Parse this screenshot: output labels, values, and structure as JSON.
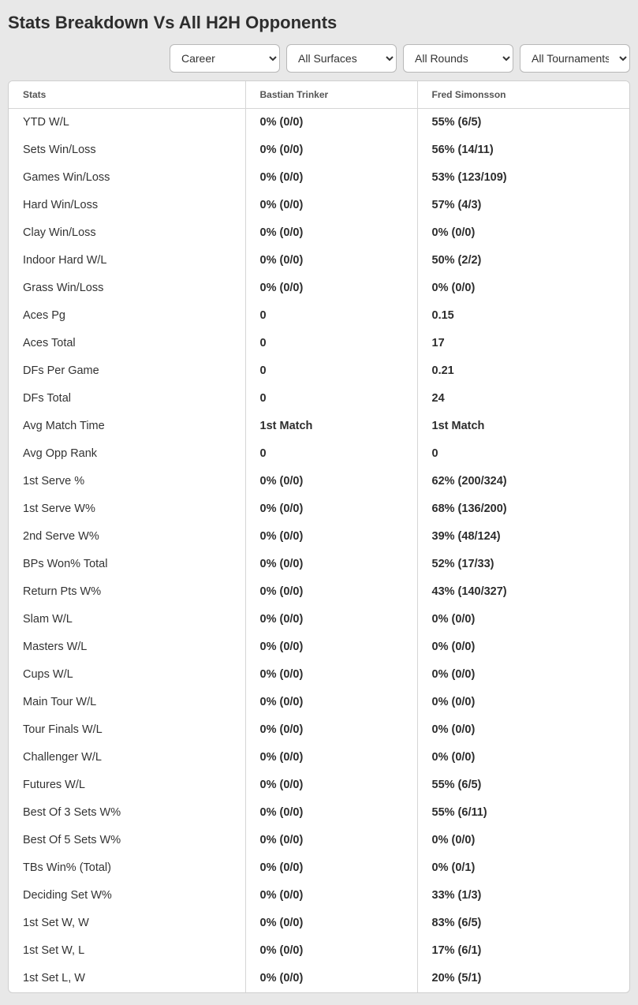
{
  "title": "Stats Breakdown Vs All H2H Opponents",
  "filters": {
    "career": {
      "selected": "Career"
    },
    "surfaces": {
      "selected": "All Surfaces"
    },
    "rounds": {
      "selected": "All Rounds"
    },
    "tourn": {
      "selected": "All Tournaments"
    }
  },
  "table": {
    "headers": {
      "stats": "Stats",
      "p1": "Bastian Trinker",
      "p2": "Fred Simonsson"
    },
    "rows": [
      {
        "label": "YTD W/L",
        "p1": "0% (0/0)",
        "p2": "55% (6/5)"
      },
      {
        "label": "Sets Win/Loss",
        "p1": "0% (0/0)",
        "p2": "56% (14/11)"
      },
      {
        "label": "Games Win/Loss",
        "p1": "0% (0/0)",
        "p2": "53% (123/109)"
      },
      {
        "label": "Hard Win/Loss",
        "p1": "0% (0/0)",
        "p2": "57% (4/3)"
      },
      {
        "label": "Clay Win/Loss",
        "p1": "0% (0/0)",
        "p2": "0% (0/0)"
      },
      {
        "label": "Indoor Hard W/L",
        "p1": "0% (0/0)",
        "p2": "50% (2/2)"
      },
      {
        "label": "Grass Win/Loss",
        "p1": "0% (0/0)",
        "p2": "0% (0/0)"
      },
      {
        "label": "Aces Pg",
        "p1": "0",
        "p2": "0.15"
      },
      {
        "label": "Aces Total",
        "p1": "0",
        "p2": "17"
      },
      {
        "label": "DFs Per Game",
        "p1": "0",
        "p2": "0.21"
      },
      {
        "label": "DFs Total",
        "p1": "0",
        "p2": "24"
      },
      {
        "label": "Avg Match Time",
        "p1": "1st Match",
        "p2": "1st Match"
      },
      {
        "label": "Avg Opp Rank",
        "p1": "0",
        "p2": "0"
      },
      {
        "label": "1st Serve %",
        "p1": "0% (0/0)",
        "p2": "62% (200/324)"
      },
      {
        "label": "1st Serve W%",
        "p1": "0% (0/0)",
        "p2": "68% (136/200)"
      },
      {
        "label": "2nd Serve W%",
        "p1": "0% (0/0)",
        "p2": "39% (48/124)"
      },
      {
        "label": "BPs Won% Total",
        "p1": "0% (0/0)",
        "p2": "52% (17/33)"
      },
      {
        "label": "Return Pts W%",
        "p1": "0% (0/0)",
        "p2": "43% (140/327)"
      },
      {
        "label": "Slam W/L",
        "p1": "0% (0/0)",
        "p2": "0% (0/0)"
      },
      {
        "label": "Masters W/L",
        "p1": "0% (0/0)",
        "p2": "0% (0/0)"
      },
      {
        "label": "Cups W/L",
        "p1": "0% (0/0)",
        "p2": "0% (0/0)"
      },
      {
        "label": "Main Tour W/L",
        "p1": "0% (0/0)",
        "p2": "0% (0/0)"
      },
      {
        "label": "Tour Finals W/L",
        "p1": "0% (0/0)",
        "p2": "0% (0/0)"
      },
      {
        "label": "Challenger W/L",
        "p1": "0% (0/0)",
        "p2": "0% (0/0)"
      },
      {
        "label": "Futures W/L",
        "p1": "0% (0/0)",
        "p2": "55% (6/5)"
      },
      {
        "label": "Best Of 3 Sets W%",
        "p1": "0% (0/0)",
        "p2": "55% (6/11)"
      },
      {
        "label": "Best Of 5 Sets W%",
        "p1": "0% (0/0)",
        "p2": "0% (0/0)"
      },
      {
        "label": "TBs Win% (Total)",
        "p1": "0% (0/0)",
        "p2": "0% (0/1)"
      },
      {
        "label": "Deciding Set W%",
        "p1": "0% (0/0)",
        "p2": "33% (1/3)"
      },
      {
        "label": "1st Set W, W",
        "p1": "0% (0/0)",
        "p2": "83% (6/5)"
      },
      {
        "label": "1st Set W, L",
        "p1": "0% (0/0)",
        "p2": "17% (6/1)"
      },
      {
        "label": "1st Set L, W",
        "p1": "0% (0/0)",
        "p2": "20% (5/1)"
      }
    ]
  },
  "colors": {
    "page_bg": "#e8e8e8",
    "card_bg": "#ffffff",
    "border": "#d6d6d6",
    "text": "#333333",
    "header_text": "#555555"
  }
}
